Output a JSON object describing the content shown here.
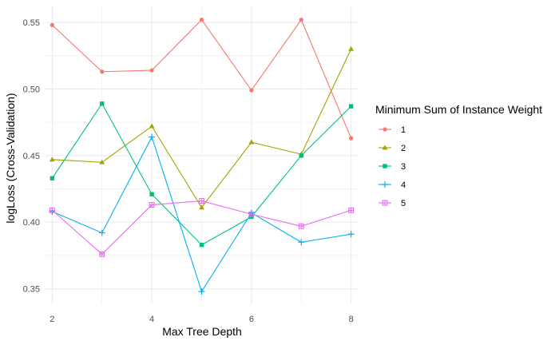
{
  "chart_data": {
    "type": "line",
    "xlabel": "Max Tree Depth",
    "ylabel": "logLoss (Cross-Validation)",
    "x": [
      2,
      3,
      4,
      5,
      6,
      7,
      8
    ],
    "xlim": [
      1.85,
      8.15
    ],
    "ylim": [
      0.339,
      0.562
    ],
    "x_ticks": [
      2,
      4,
      6,
      8
    ],
    "y_ticks": [
      0.35,
      0.4,
      0.45,
      0.5,
      0.55
    ],
    "y_tick_labels": [
      "0.35",
      "0.40",
      "0.45",
      "0.50",
      "0.55"
    ],
    "grid": true,
    "legend": {
      "title": "Minimum Sum of Instance Weight",
      "position": "right"
    },
    "series": [
      {
        "name": "1",
        "color": "#F8766D",
        "marker": "circle",
        "values": [
          0.548,
          0.513,
          0.514,
          0.552,
          0.499,
          0.552,
          0.463
        ]
      },
      {
        "name": "2",
        "color": "#A3A500",
        "marker": "triangle",
        "values": [
          0.447,
          0.445,
          0.472,
          0.411,
          0.46,
          0.451,
          0.53
        ]
      },
      {
        "name": "3",
        "color": "#00BF7D",
        "marker": "square",
        "values": [
          0.433,
          0.489,
          0.421,
          0.383,
          0.404,
          0.45,
          0.487
        ]
      },
      {
        "name": "4",
        "color": "#00B0F6",
        "marker": "plus",
        "values": [
          0.408,
          0.392,
          0.464,
          0.348,
          0.407,
          0.385,
          0.391
        ]
      },
      {
        "name": "5",
        "color": "#E76BF3",
        "marker": "boxplus",
        "values": [
          0.409,
          0.376,
          0.413,
          0.416,
          0.406,
          0.397,
          0.409
        ]
      }
    ]
  }
}
